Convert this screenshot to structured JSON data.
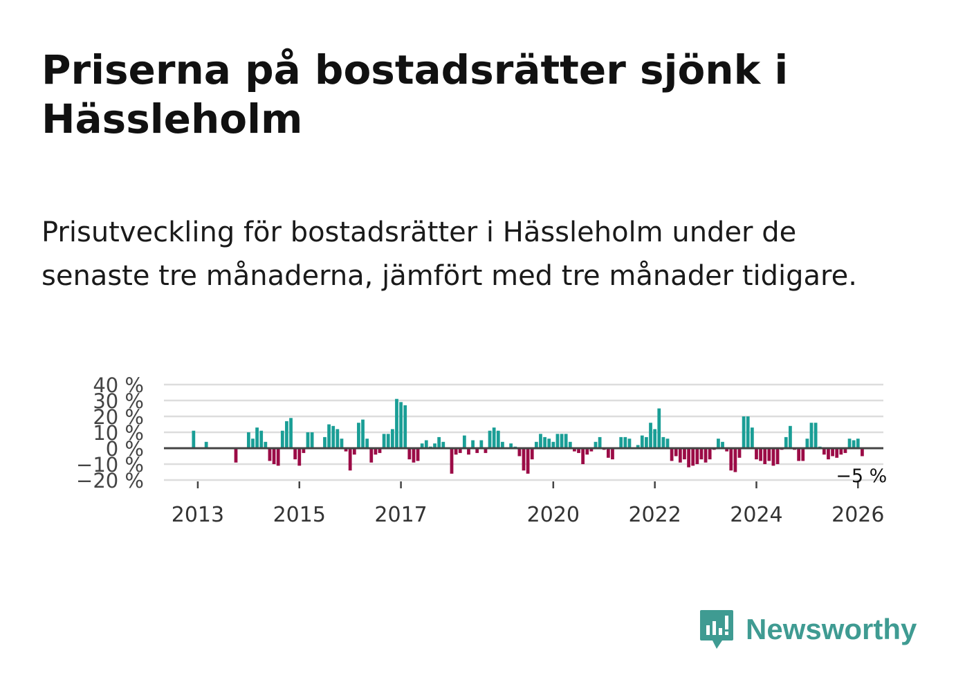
{
  "title": "Priserna på bostadsrätter sjönk i Hässleholm",
  "subtitle": "Prisutveckling för bostadsrätter i Hässleholm under de senaste tre månaderna, jämfört med tre månader tidigare.",
  "brand": {
    "name": "Newsworthy"
  },
  "colors": {
    "positive": "#1a9e96",
    "negative": "#9b0b46",
    "grid": "#dddddd",
    "zero": "#444444"
  },
  "chart_data": {
    "type": "bar",
    "title": "",
    "xlabel": "",
    "ylabel": "",
    "ylim": [
      -20,
      40
    ],
    "yticks": [
      40,
      30,
      20,
      10,
      0,
      -10,
      -20
    ],
    "ytick_labels": [
      "40 %",
      "30 %",
      "20 %",
      "10 %",
      "0 %",
      "−10 %",
      "−20 %"
    ],
    "xticks": [
      2013,
      2015,
      2017,
      2020,
      2022,
      2024,
      2026
    ],
    "xtick_labels": [
      "2013",
      "2015",
      "2017",
      "2020",
      "2022",
      "2024",
      "2026"
    ],
    "x_start": "2012-05",
    "x_end": "2026-07",
    "annotation": {
      "month": "2026-01",
      "label": "−5 %"
    },
    "series": [
      {
        "name": "Prisutveckling",
        "points": [
          [
            "2012-12",
            11
          ],
          [
            "2013-01",
            0
          ],
          [
            "2013-02",
            0
          ],
          [
            "2013-03",
            4
          ],
          [
            "2013-04",
            0
          ],
          [
            "2013-05",
            0
          ],
          [
            "2013-06",
            0
          ],
          [
            "2013-07",
            0
          ],
          [
            "2013-08",
            0
          ],
          [
            "2013-09",
            0
          ],
          [
            "2013-10",
            -9
          ],
          [
            "2013-11",
            0
          ],
          [
            "2013-12",
            0
          ],
          [
            "2014-01",
            10
          ],
          [
            "2014-02",
            6
          ],
          [
            "2014-03",
            13
          ],
          [
            "2014-04",
            11
          ],
          [
            "2014-05",
            4
          ],
          [
            "2014-06",
            -8
          ],
          [
            "2014-07",
            -10
          ],
          [
            "2014-08",
            -11
          ],
          [
            "2014-09",
            11
          ],
          [
            "2014-10",
            17
          ],
          [
            "2014-11",
            19
          ],
          [
            "2014-12",
            -7
          ],
          [
            "2015-01",
            -11
          ],
          [
            "2015-02",
            -3
          ],
          [
            "2015-03",
            10
          ],
          [
            "2015-04",
            10
          ],
          [
            "2015-05",
            0
          ],
          [
            "2015-06",
            0
          ],
          [
            "2015-07",
            7
          ],
          [
            "2015-08",
            15
          ],
          [
            "2015-09",
            14
          ],
          [
            "2015-10",
            12
          ],
          [
            "2015-11",
            6
          ],
          [
            "2015-12",
            -2
          ],
          [
            "2016-01",
            -14
          ],
          [
            "2016-02",
            -4
          ],
          [
            "2016-03",
            16
          ],
          [
            "2016-04",
            18
          ],
          [
            "2016-05",
            6
          ],
          [
            "2016-06",
            -9
          ],
          [
            "2016-07",
            -4
          ],
          [
            "2016-08",
            -3
          ],
          [
            "2016-09",
            9
          ],
          [
            "2016-10",
            9
          ],
          [
            "2016-11",
            12
          ],
          [
            "2016-12",
            31
          ],
          [
            "2017-01",
            29
          ],
          [
            "2017-02",
            27
          ],
          [
            "2017-03",
            -7
          ],
          [
            "2017-04",
            -9
          ],
          [
            "2017-05",
            -8
          ],
          [
            "2017-06",
            3
          ],
          [
            "2017-07",
            5
          ],
          [
            "2017-08",
            1
          ],
          [
            "2017-09",
            3
          ],
          [
            "2017-10",
            7
          ],
          [
            "2017-11",
            4
          ],
          [
            "2017-12",
            0
          ],
          [
            "2018-01",
            -16
          ],
          [
            "2018-02",
            -4
          ],
          [
            "2018-03",
            -3
          ],
          [
            "2018-04",
            8
          ],
          [
            "2018-05",
            -4
          ],
          [
            "2018-06",
            5
          ],
          [
            "2018-07",
            -3
          ],
          [
            "2018-08",
            5
          ],
          [
            "2018-09",
            -3
          ],
          [
            "2018-10",
            11
          ],
          [
            "2018-11",
            13
          ],
          [
            "2018-12",
            11
          ],
          [
            "2019-01",
            4
          ],
          [
            "2019-02",
            0
          ],
          [
            "2019-03",
            3
          ],
          [
            "2019-04",
            1
          ],
          [
            "2019-05",
            -5
          ],
          [
            "2019-06",
            -14
          ],
          [
            "2019-07",
            -16
          ],
          [
            "2019-08",
            -7
          ],
          [
            "2019-09",
            4
          ],
          [
            "2019-10",
            9
          ],
          [
            "2019-11",
            7
          ],
          [
            "2019-12",
            6
          ],
          [
            "2020-01",
            4
          ],
          [
            "2020-02",
            9
          ],
          [
            "2020-03",
            9
          ],
          [
            "2020-04",
            9
          ],
          [
            "2020-05",
            4
          ],
          [
            "2020-06",
            -2
          ],
          [
            "2020-07",
            -3
          ],
          [
            "2020-08",
            -10
          ],
          [
            "2020-09",
            -4
          ],
          [
            "2020-10",
            -2
          ],
          [
            "2020-11",
            4
          ],
          [
            "2020-12",
            7
          ],
          [
            "2021-01",
            -1
          ],
          [
            "2021-02",
            -6
          ],
          [
            "2021-03",
            -7
          ],
          [
            "2021-04",
            0
          ],
          [
            "2021-05",
            7
          ],
          [
            "2021-06",
            7
          ],
          [
            "2021-07",
            6
          ],
          [
            "2021-08",
            0
          ],
          [
            "2021-09",
            2
          ],
          [
            "2021-10",
            8
          ],
          [
            "2021-11",
            7
          ],
          [
            "2021-12",
            16
          ],
          [
            "2022-01",
            12
          ],
          [
            "2022-02",
            25
          ],
          [
            "2022-03",
            7
          ],
          [
            "2022-04",
            6
          ],
          [
            "2022-05",
            -8
          ],
          [
            "2022-06",
            -5
          ],
          [
            "2022-07",
            -9
          ],
          [
            "2022-08",
            -7
          ],
          [
            "2022-09",
            -12
          ],
          [
            "2022-10",
            -11
          ],
          [
            "2022-11",
            -10
          ],
          [
            "2022-12",
            -7
          ],
          [
            "2023-01",
            -9
          ],
          [
            "2023-02",
            -7
          ],
          [
            "2023-03",
            -1
          ],
          [
            "2023-04",
            6
          ],
          [
            "2023-05",
            4
          ],
          [
            "2023-06",
            -2
          ],
          [
            "2023-07",
            -14
          ],
          [
            "2023-08",
            -15
          ],
          [
            "2023-09",
            -6
          ],
          [
            "2023-10",
            20
          ],
          [
            "2023-11",
            20
          ],
          [
            "2023-12",
            13
          ],
          [
            "2024-01",
            -7
          ],
          [
            "2024-02",
            -8
          ],
          [
            "2024-03",
            -10
          ],
          [
            "2024-04",
            -8
          ],
          [
            "2024-05",
            -11
          ],
          [
            "2024-06",
            -10
          ],
          [
            "2024-07",
            -1
          ],
          [
            "2024-08",
            7
          ],
          [
            "2024-09",
            14
          ],
          [
            "2024-10",
            -1
          ],
          [
            "2024-11",
            -8
          ],
          [
            "2024-12",
            -8
          ],
          [
            "2025-01",
            6
          ],
          [
            "2025-02",
            16
          ],
          [
            "2025-03",
            16
          ],
          [
            "2025-04",
            1
          ],
          [
            "2025-05",
            -4
          ],
          [
            "2025-06",
            -7
          ],
          [
            "2025-07",
            -5
          ],
          [
            "2025-08",
            -6
          ],
          [
            "2025-09",
            -4
          ],
          [
            "2025-10",
            -3
          ],
          [
            "2025-11",
            6
          ],
          [
            "2025-12",
            5
          ],
          [
            "2026-01",
            6
          ],
          [
            "2026-02",
            -5
          ]
        ]
      }
    ]
  }
}
